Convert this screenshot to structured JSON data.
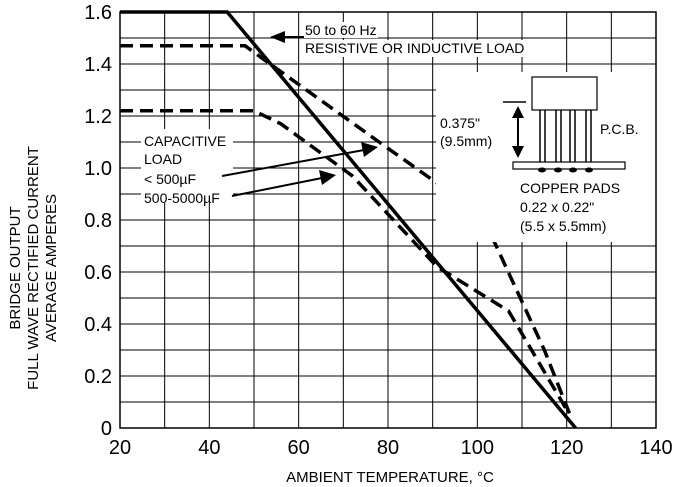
{
  "chart_data": {
    "type": "line",
    "xlabel": "AMBIENT TEMPERATURE, °C",
    "ylabel_lines": [
      "BRIDGE OUTPUT",
      "FULL WAVE RECTIFIED CURRENT",
      "AVERAGE AMPERES"
    ],
    "xlim": [
      20,
      140
    ],
    "ylim": [
      0,
      1.6
    ],
    "x_ticks": [
      "20",
      "40",
      "60",
      "80",
      "100",
      "120",
      "140"
    ],
    "y_ticks": [
      "0",
      "0.2",
      "0.4",
      "0.6",
      "0.8",
      "1.0",
      "1.2",
      "1.4",
      "1.6"
    ],
    "x_grid_step": 10,
    "y_grid_step": 0.1,
    "grid": true,
    "series": [
      {
        "style": "solid",
        "x": [
          20,
          44,
          122
        ],
        "y": [
          1.6,
          1.6,
          0.0
        ]
      },
      {
        "style": "dashed",
        "x": [
          20,
          48,
          52,
          78,
          101,
          115,
          121
        ],
        "y": [
          1.47,
          1.47,
          1.42,
          1.1,
          0.82,
          0.3,
          0.04
        ]
      },
      {
        "style": "dashed",
        "x": [
          20,
          50,
          56,
          72,
          91,
          107,
          120
        ],
        "y": [
          1.22,
          1.22,
          1.17,
          0.97,
          0.62,
          0.45,
          0.07
        ]
      }
    ],
    "annotations": {
      "freq": "50 to 60 Hz",
      "load": "RESISTIVE OR INDUCTIVE LOAD",
      "capacitive": "CAPACITIVE",
      "load2": "LOAD",
      "cap_low": "< 500µF",
      "cap_high": "500-5000µF",
      "dim1": "0.375\"",
      "dim2": "(9.5mm)",
      "pcb": "P.C.B.",
      "pads": "COPPER PADS",
      "pad_size": "0.22 x 0.22\"",
      "pad_size_mm": "(5.5 x 5.5mm)"
    }
  }
}
